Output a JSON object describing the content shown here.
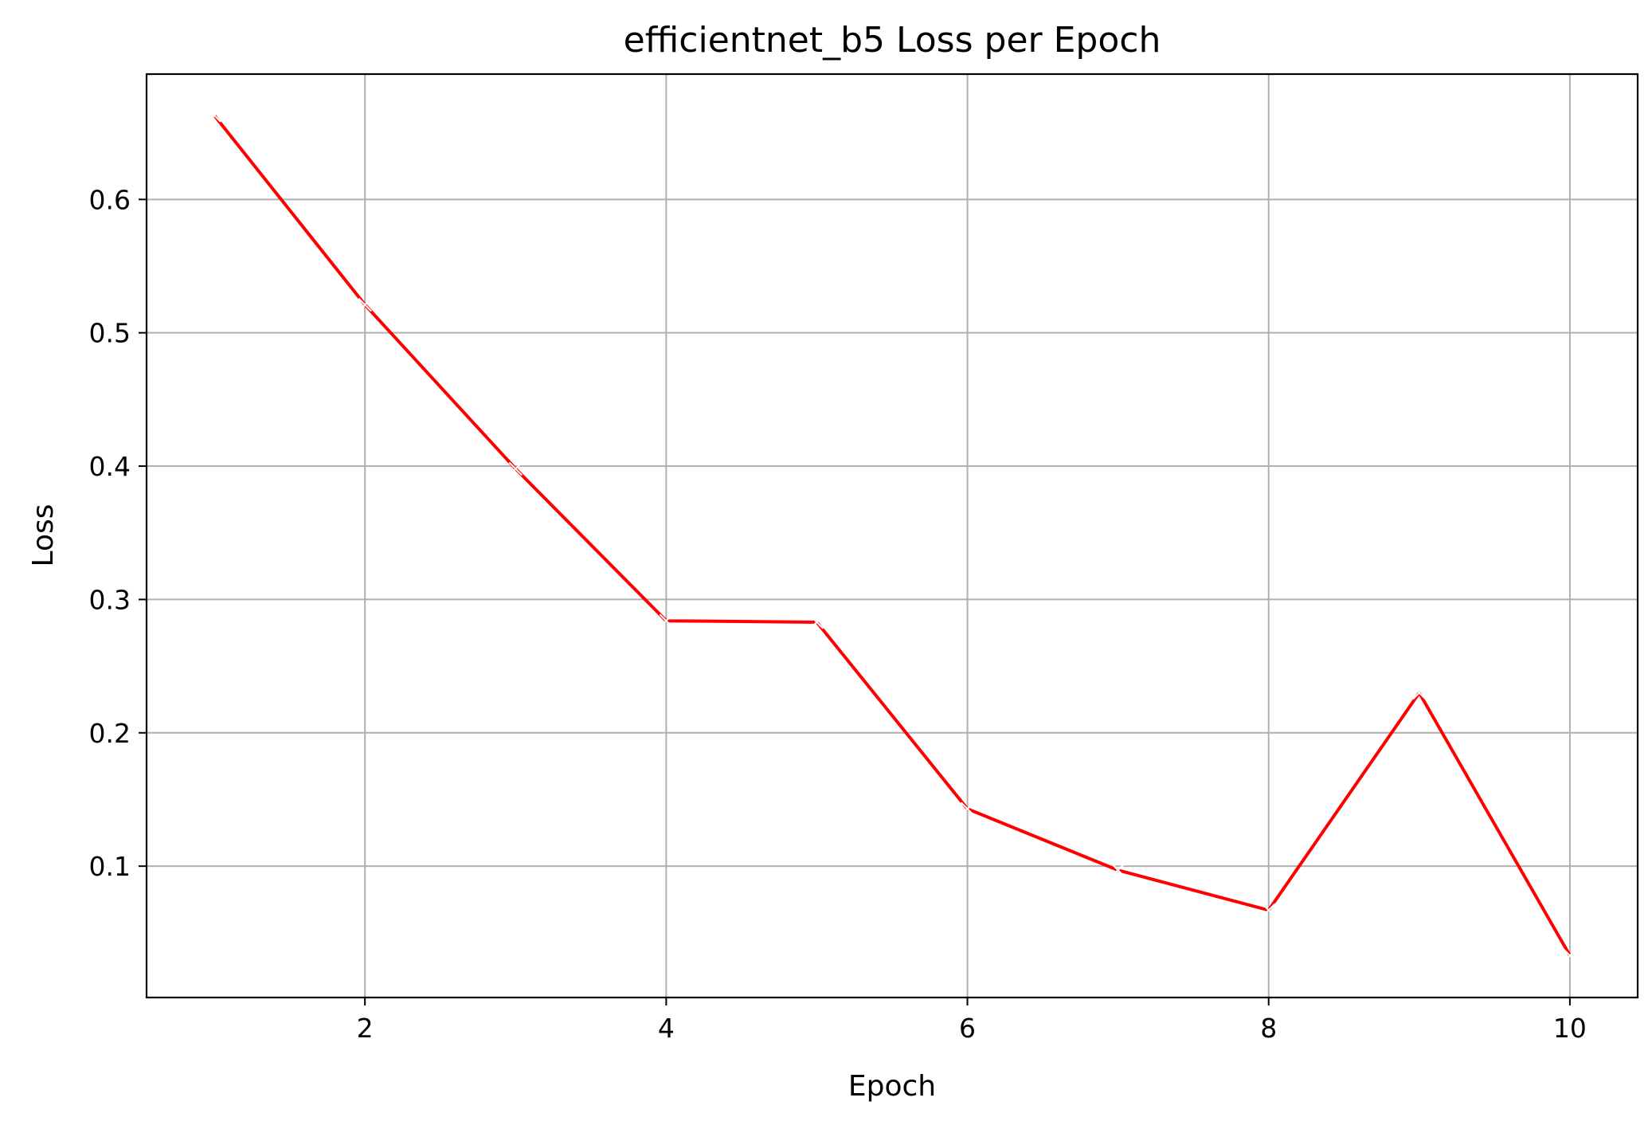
{
  "chart_data": {
    "type": "line",
    "title": "efficientnet_b5 Loss per Epoch",
    "xlabel": "Epoch",
    "ylabel": "Loss",
    "xlim": [
      0.55,
      10.45
    ],
    "ylim": [
      0.0015,
      0.694
    ],
    "xticks": [
      2,
      4,
      6,
      8,
      10
    ],
    "yticks": [
      0.1,
      0.2,
      0.3,
      0.4,
      0.5,
      0.6
    ],
    "xtick_labels": [
      "2",
      "4",
      "6",
      "8",
      "10"
    ],
    "ytick_labels": [
      "0.1",
      "0.2",
      "0.3",
      "0.4",
      "0.5",
      "0.6"
    ],
    "grid": true,
    "series": [
      {
        "color": "#ff0000",
        "marker": "x",
        "marker_color": "#ffffff",
        "x": [
          1,
          2,
          3,
          4,
          5,
          6,
          7,
          8,
          9,
          10
        ],
        "y": [
          0.663,
          0.521,
          0.398,
          0.284,
          0.283,
          0.143,
          0.097,
          0.067,
          0.23,
          0.033
        ]
      }
    ]
  }
}
